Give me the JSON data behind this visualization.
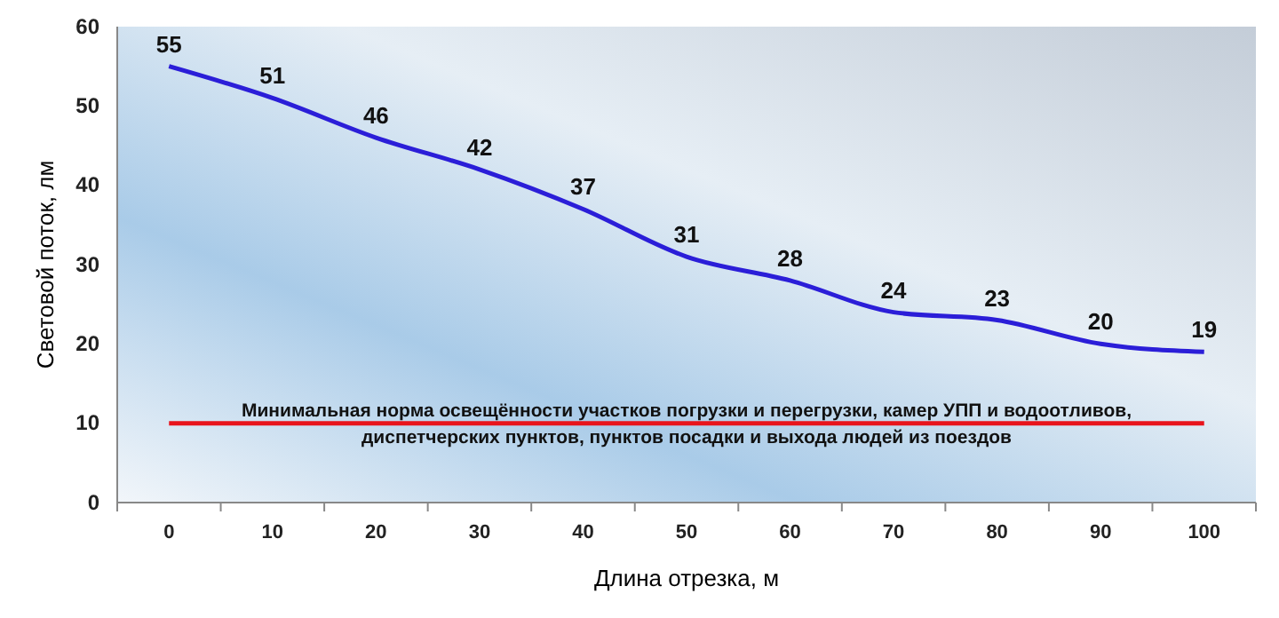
{
  "chart_data": {
    "type": "line",
    "xlabel": "Длина отрезка, м",
    "ylabel": "Световой поток, лм",
    "categories": [
      "0",
      "10",
      "20",
      "30",
      "40",
      "50",
      "60",
      "70",
      "80",
      "90",
      "100"
    ],
    "series": [
      {
        "color": "#2b1ed8",
        "values": [
          55,
          51,
          46,
          42,
          37,
          31,
          28,
          24,
          23,
          20,
          19
        ]
      }
    ],
    "ylim": [
      0,
      60
    ],
    "yticks": [
      0,
      10,
      20,
      30,
      40,
      50,
      60
    ],
    "data_labels": true,
    "marker": "none",
    "line_style": "solid",
    "ref_lines": [
      {
        "axis": "y",
        "value": 10,
        "color": "#e8141c",
        "label": "Минимальная  норма освещённости  участков  погрузки и перегрузки, камер УПП и водоотливов,\nдиспетчерских  пунктов,  пунктов посадки и выхода людей из поездов"
      }
    ]
  }
}
